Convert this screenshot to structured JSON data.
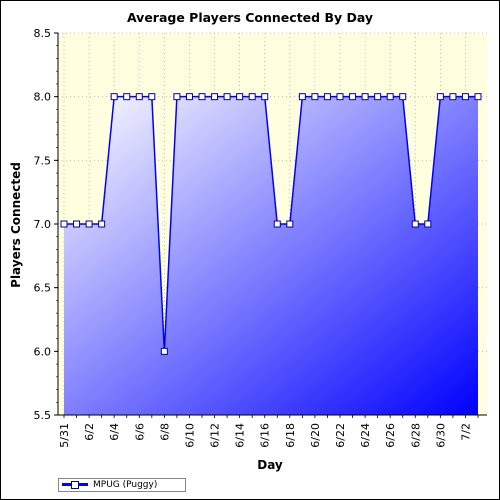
{
  "chart_data": {
    "type": "area",
    "title": "Average Players Connected By Day",
    "xlabel": "Day",
    "ylabel": "Players Connected",
    "ylim": [
      5.5,
      8.5
    ],
    "yticks": [
      "5.5",
      "6.0",
      "6.5",
      "7.0",
      "7.5",
      "8.0",
      "8.5"
    ],
    "xtick_labels": [
      "5/31",
      "6/2",
      "6/4",
      "6/6",
      "6/8",
      "6/10",
      "6/12",
      "6/14",
      "6/16",
      "6/18",
      "6/20",
      "6/22",
      "6/24",
      "6/26",
      "6/28",
      "6/30",
      "7/2"
    ],
    "categories": [
      "5/31",
      "6/1",
      "6/2",
      "6/3",
      "6/4",
      "6/5",
      "6/6",
      "6/7",
      "6/8",
      "6/9",
      "6/10",
      "6/11",
      "6/12",
      "6/13",
      "6/14",
      "6/15",
      "6/16",
      "6/17",
      "6/18",
      "6/19",
      "6/20",
      "6/21",
      "6/22",
      "6/23",
      "6/24",
      "6/25",
      "6/26",
      "6/27",
      "6/28",
      "6/29",
      "6/30",
      "7/1",
      "7/2",
      "7/3"
    ],
    "series": [
      {
        "name": "MPUG (Puggy)",
        "values": [
          7.0,
          7.0,
          7.0,
          7.0,
          8.0,
          8.0,
          8.0,
          8.0,
          6.0,
          8.0,
          8.0,
          8.0,
          8.0,
          8.0,
          8.0,
          8.0,
          8.0,
          7.0,
          7.0,
          8.0,
          8.0,
          8.0,
          8.0,
          8.0,
          8.0,
          8.0,
          8.0,
          8.0,
          7.0,
          7.0,
          8.0,
          8.0,
          8.0,
          8.0
        ]
      }
    ],
    "grid": true,
    "legend_position": "bottom-left",
    "colors": {
      "plot_background": "#ffffe0",
      "line": "#0000ff",
      "fill_top": "#ffffff",
      "fill_bottom": "#0000ff",
      "marker_fill": "#ffffff",
      "grid": "#b0b0a0"
    }
  }
}
